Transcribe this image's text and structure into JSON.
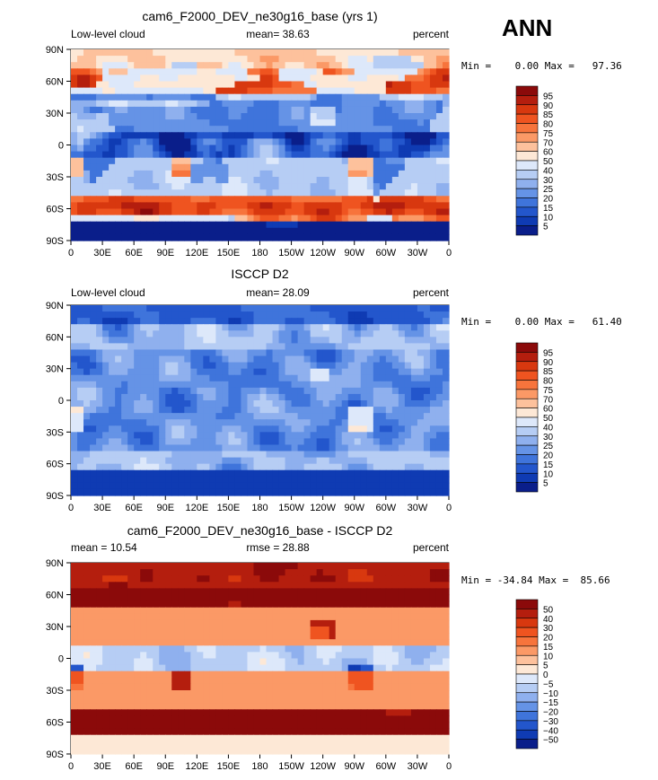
{
  "season": "ANN",
  "chart_data": [
    {
      "type": "heatmap",
      "title": "cam6_F2000_DEV_ne30g16_base (yrs 1)",
      "left_label": "Low-level cloud",
      "center_label": "mean=  38.63",
      "units": "percent",
      "stats": "Min =    0.00 Max =   97.36",
      "mean": 38.63,
      "min": 0.0,
      "max": 97.36,
      "x_ticks": [
        "0",
        "30E",
        "60E",
        "90E",
        "120E",
        "150E",
        "180",
        "150W",
        "120W",
        "90W",
        "60W",
        "30W",
        "0"
      ],
      "y_ticks": [
        "90N",
        "60N",
        "30N",
        "0",
        "30S",
        "60S",
        "90S"
      ],
      "levels": [
        "95",
        "90",
        "85",
        "80",
        "75",
        "70",
        "60",
        "50",
        "40",
        "30",
        "25",
        "20",
        "15",
        "10",
        "5"
      ],
      "colors": [
        "#8b0a0a",
        "#b41e0e",
        "#d8380f",
        "#ef5420",
        "#f7743c",
        "#fb9966",
        "#fdc19c",
        "#fde8d6",
        "#dde8fa",
        "#b6cdf4",
        "#8fb0ee",
        "#6593e6",
        "#3f74db",
        "#2356cc",
        "#0f3bb3",
        "#0a1e8a"
      ]
    },
    {
      "type": "heatmap",
      "title": "ISCCP D2",
      "left_label": "Low-level cloud",
      "center_label": "mean=  28.09",
      "units": "percent",
      "stats": "Min =    0.00 Max =   61.40",
      "mean": 28.09,
      "min": 0.0,
      "max": 61.4,
      "x_ticks": [
        "0",
        "30E",
        "60E",
        "90E",
        "120E",
        "150E",
        "180",
        "150W",
        "120W",
        "90W",
        "60W",
        "30W",
        "0"
      ],
      "y_ticks": [
        "90N",
        "60N",
        "30N",
        "0",
        "30S",
        "60S",
        "90S"
      ],
      "levels": [
        "95",
        "90",
        "85",
        "80",
        "75",
        "70",
        "60",
        "50",
        "40",
        "30",
        "25",
        "20",
        "15",
        "10",
        "5"
      ],
      "colors": [
        "#8b0a0a",
        "#b41e0e",
        "#d8380f",
        "#ef5420",
        "#f7743c",
        "#fb9966",
        "#fdc19c",
        "#fde8d6",
        "#dde8fa",
        "#b6cdf4",
        "#8fb0ee",
        "#6593e6",
        "#3f74db",
        "#2356cc",
        "#0f3bb3",
        "#0a1e8a"
      ]
    },
    {
      "type": "heatmap",
      "title": "cam6_F2000_DEV_ne30g16_base - ISCCP D2",
      "left_label": "mean =   10.54",
      "center_label": "rmse =   28.88",
      "units": "percent",
      "stats": "Min = -34.84 Max =  85.66",
      "mean": 10.54,
      "rmse": 28.88,
      "min": -34.84,
      "max": 85.66,
      "x_ticks": [
        "0",
        "30E",
        "60E",
        "90E",
        "120E",
        "150E",
        "180",
        "150W",
        "120W",
        "90W",
        "60W",
        "30W",
        "0"
      ],
      "y_ticks": [
        "90N",
        "60N",
        "30N",
        "0",
        "30S",
        "60S",
        "90S"
      ],
      "levels": [
        "50",
        "40",
        "30",
        "20",
        "15",
        "10",
        "5",
        "0",
        "−5",
        "−10",
        "−15",
        "−20",
        "−30",
        "−40",
        "−50"
      ],
      "colors": [
        "#8b0a0a",
        "#b41e0e",
        "#d8380f",
        "#ef5420",
        "#f7743c",
        "#fb9966",
        "#fdc19c",
        "#fde8d6",
        "#dde8fa",
        "#b6cdf4",
        "#8fb0ee",
        "#6593e6",
        "#3f74db",
        "#2356cc",
        "#0f3bb3",
        "#0a1e8a"
      ]
    }
  ]
}
